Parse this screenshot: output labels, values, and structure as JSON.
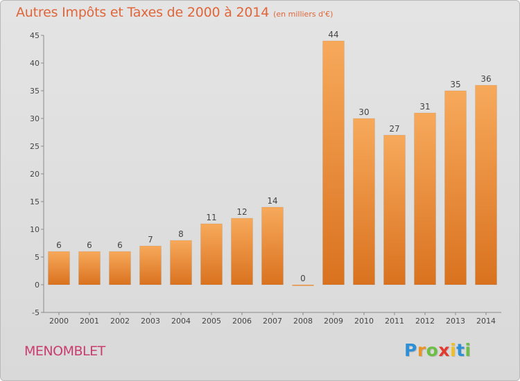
{
  "header": {
    "title": "Autres Impôts et Taxes de 2000 à 2014",
    "unit": "(en milliers d'€)"
  },
  "footer": {
    "commune": "MENOMBLET",
    "logo": [
      "P",
      "r",
      "o",
      "x",
      "i",
      "t",
      "i"
    ]
  },
  "colors": {
    "title": "#e0663a",
    "commune": "#c83c6e",
    "bar_top": "#f7a95b",
    "bar_bottom": "#d9721f"
  },
  "chart_data": {
    "type": "bar",
    "title": "Autres Impôts et Taxes de 2000 à 2014",
    "ylabel": "",
    "xlabel": "",
    "categories": [
      "2000",
      "2001",
      "2002",
      "2003",
      "2004",
      "2005",
      "2006",
      "2007",
      "2008",
      "2009",
      "2010",
      "2011",
      "2012",
      "2013",
      "2014"
    ],
    "values": [
      6,
      6,
      6,
      7,
      8,
      11,
      12,
      14,
      0,
      44,
      30,
      27,
      31,
      35,
      36
    ],
    "ylim": [
      -5,
      45
    ],
    "yticks": [
      -5,
      0,
      5,
      10,
      15,
      20,
      25,
      30,
      35,
      40,
      45
    ],
    "grid": false,
    "legend": "none"
  }
}
